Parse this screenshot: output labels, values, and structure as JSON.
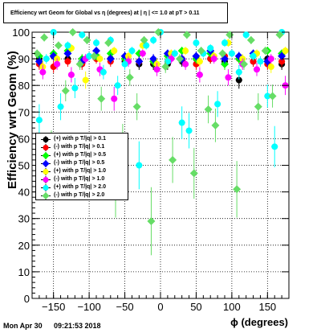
{
  "header": {
    "title": "Efficiency wrt Geom for Global vs η (degrees) at | η | <= 1.0 at pT > 0.11"
  },
  "footer": {
    "date": "Mon Apr 30",
    "time": "09:21:53 2018"
  },
  "chart_data": {
    "type": "scatter",
    "title": "Efficiency wrt Geom for Global vs η (degrees) at | η | <= 1.0 at pT > 0.11",
    "xlabel": "ϕ (degrees)",
    "ylabel": "Efficiency wrt Geom (%)",
    "xlim": [
      -180,
      180
    ],
    "ylim": [
      0,
      100
    ],
    "xticks": [
      -150,
      -100,
      -50,
      0,
      50,
      100,
      150
    ],
    "yticks": [
      0,
      10,
      20,
      30,
      40,
      50,
      60,
      70,
      80,
      90,
      100
    ],
    "grid": true,
    "legend_position": "middle-left",
    "series": [
      {
        "name": "(+) with p T/|q| > 0.1",
        "color": "#000000",
        "marker": "circle",
        "x": [
          -170,
          -150,
          -130,
          -110,
          -90,
          -70,
          -50,
          -30,
          -10,
          10,
          30,
          50,
          70,
          90,
          110,
          130,
          150,
          170
        ],
        "y": [
          90,
          91,
          90,
          89,
          91,
          90,
          89,
          88,
          88,
          88,
          89,
          90,
          90,
          89,
          82,
          89,
          90,
          88
        ]
      },
      {
        "name": "(-) with p T/|q| > 0.1",
        "color": "#ff0000",
        "marker": "circle",
        "x": [
          -170,
          -150,
          -130,
          -110,
          -90,
          -70,
          -50,
          -30,
          -10,
          10,
          30,
          50,
          70,
          90,
          110,
          130,
          150,
          170
        ],
        "y": [
          88,
          87,
          89,
          88,
          90,
          89,
          90,
          89,
          89,
          89,
          90,
          88,
          90,
          91,
          90,
          89,
          88,
          89
        ]
      },
      {
        "name": "(+) with p T/|q| > 0.5",
        "color": "#00ff00",
        "marker": "diamond",
        "x": [
          -170,
          -150,
          -130,
          -110,
          -90,
          -70,
          -50,
          -30,
          -10,
          10,
          30,
          50,
          70,
          90,
          110,
          130,
          150,
          170
        ],
        "y": [
          91,
          92,
          93,
          90,
          91,
          92,
          90,
          92,
          89,
          91,
          93,
          90,
          92,
          88,
          90,
          91,
          93,
          92
        ]
      },
      {
        "name": "(-) with p T/|q| > 0.5",
        "color": "#0000ff",
        "marker": "diamond",
        "x": [
          -170,
          -150,
          -130,
          -110,
          -90,
          -70,
          -50,
          -30,
          -10,
          10,
          30,
          50,
          70,
          90,
          110,
          130,
          150,
          170
        ],
        "y": [
          89,
          91,
          92,
          89,
          93,
          90,
          91,
          89,
          90,
          92,
          90,
          91,
          93,
          90,
          91,
          92,
          89,
          91
        ]
      },
      {
        "name": "(+) with p T/|q| > 1.0",
        "color": "#ffff00",
        "marker": "circle",
        "x": [
          -165,
          -145,
          -125,
          -105,
          -85,
          -65,
          -45,
          -25,
          -5,
          15,
          35,
          55,
          75,
          95,
          115,
          135,
          155,
          175
        ],
        "y": [
          87,
          90,
          94,
          82,
          90,
          93,
          91,
          95,
          88,
          92,
          93,
          89,
          91,
          96,
          90,
          92,
          87,
          93
        ]
      },
      {
        "name": "(-) with p T/|q| > 1.0",
        "color": "#ff00ff",
        "marker": "circle",
        "x": [
          -165,
          -145,
          -125,
          -105,
          -85,
          -65,
          -45,
          -25,
          -5,
          15,
          35,
          55,
          75,
          95,
          115,
          135,
          155,
          175
        ],
        "y": [
          85,
          88,
          84,
          90,
          86,
          75,
          89,
          92,
          86,
          90,
          88,
          84,
          90,
          83,
          88,
          86,
          90,
          80
        ]
      },
      {
        "name": "(+) with p T/|q| > 2.0",
        "color": "#00ffff",
        "marker": "circle",
        "x": [
          -170,
          -160,
          -150,
          -140,
          -130,
          -120,
          -110,
          -100,
          -90,
          -80,
          -70,
          -60,
          -50,
          -40,
          -30,
          -20,
          -10,
          0,
          10,
          20,
          30,
          40,
          50,
          60,
          70,
          80,
          90,
          100,
          110,
          120,
          130,
          140,
          150,
          160,
          170
        ],
        "y": [
          67,
          90,
          100,
          72,
          95,
          79,
          99,
          91,
          96,
          85,
          97,
          80,
          88,
          93,
          50,
          95,
          97,
          100,
          89,
          92,
          66,
          63,
          96,
          92,
          94,
          73,
          96,
          92,
          85,
          99,
          91,
          89,
          76,
          57,
          100
        ]
      },
      {
        "name": "(-) with p T/|q| > 2.0",
        "color": "#66dd66",
        "marker": "diamond",
        "x": [
          -173,
          -163,
          -153,
          -143,
          -133,
          -123,
          -113,
          -103,
          -93,
          -83,
          -73,
          -63,
          -53,
          -43,
          -33,
          -23,
          -13,
          -3,
          7,
          17,
          27,
          37,
          47,
          57,
          67,
          77,
          87,
          97,
          107,
          117,
          127,
          137,
          147,
          157,
          167
        ],
        "y": [
          92,
          98,
          55,
          95,
          78,
          100,
          88,
          97,
          91,
          75,
          96,
          41,
          58,
          83,
          72,
          97,
          29,
          100,
          87,
          52,
          90,
          99,
          47,
          93,
          71,
          65,
          92,
          99,
          41,
          88,
          97,
          72,
          93,
          76,
          99
        ]
      }
    ]
  }
}
